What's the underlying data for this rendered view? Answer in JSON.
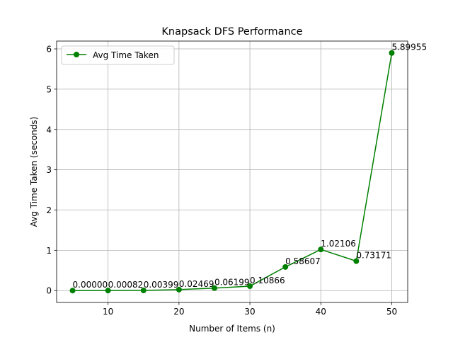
{
  "chart_data": {
    "type": "line",
    "title": "Knapsack DFS Performance",
    "xlabel": "Number of Items (n)",
    "ylabel": "Avg Time Taken (seconds)",
    "x": [
      5,
      10,
      15,
      20,
      25,
      30,
      35,
      40,
      45,
      50
    ],
    "xlim": [
      2.75,
      52.25
    ],
    "ylim": [
      -0.295,
      6.194
    ],
    "x_ticks": [
      10,
      20,
      30,
      40,
      50
    ],
    "y_ticks": [
      0,
      1,
      2,
      3,
      4,
      5,
      6
    ],
    "grid": true,
    "legend_position": "upper-left",
    "series": [
      {
        "name": "Avg Time Taken",
        "color": "#008000",
        "marker": "circle",
        "values": [
          0.0,
          0.00082,
          0.00399,
          0.02469,
          0.06199,
          0.10866,
          0.58607,
          1.02106,
          0.73171,
          5.89955
        ],
        "labels": [
          "0.00000",
          "0.00082",
          "0.00399",
          "0.02469",
          "0.06199",
          "0.10866",
          "0.58607",
          "1.02106",
          "0.73171",
          "5.89955"
        ]
      }
    ]
  }
}
